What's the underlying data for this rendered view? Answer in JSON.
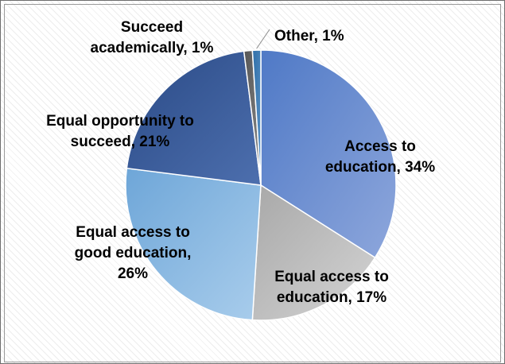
{
  "chart_data": {
    "type": "pie",
    "slices": [
      {
        "label": "Access to education",
        "value": 34,
        "value_text": "34%",
        "label_lines": [
          "Access to",
          "education, 34%"
        ],
        "color": "#4f79c6",
        "color_light": "#8ea7dc"
      },
      {
        "label": "Equal access to education",
        "value": 17,
        "value_text": "17%",
        "label_lines": [
          "Equal access to",
          "education, 17%"
        ],
        "color": "#a8a8a8",
        "color_light": "#d4d4d4"
      },
      {
        "label": "Equal access to good education",
        "value": 26,
        "value_text": "26%",
        "label_lines": [
          "Equal access to",
          "good education,",
          "26%"
        ],
        "color": "#6ea6d8",
        "color_light": "#a9cdec"
      },
      {
        "label": "Equal opportunity to succeed",
        "value": 21,
        "value_text": "21%",
        "label_lines": [
          "Equal opportunity to",
          "succeed, 21%"
        ],
        "color": "#2a4a86",
        "color_light": "#4d6fae"
      },
      {
        "label": "Succeed academically",
        "value": 1,
        "value_text": "1%",
        "label_lines": [
          "Succeed",
          "academically, 1%"
        ],
        "color": "#555555",
        "color_light": "#8a8a8a"
      },
      {
        "label": "Other",
        "value": 1,
        "value_text": "1%",
        "label_lines": [
          "Other, 1%"
        ],
        "color": "#2f6fa8",
        "color_light": "#5b93c7"
      }
    ]
  }
}
